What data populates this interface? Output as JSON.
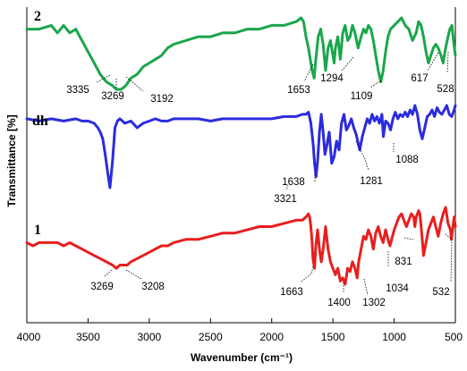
{
  "chart_data": {
    "type": "line",
    "title": "",
    "xlabel": "Wavenumber (cm⁻¹)",
    "ylabel": "Transmittance [%]",
    "xlim": [
      4000,
      500
    ],
    "xticks": [
      "4000",
      "3500",
      "3000",
      "2500",
      "2000",
      "1500",
      "1000",
      "500"
    ],
    "xtick_values": [
      4000,
      3500,
      3000,
      2500,
      2000,
      1500,
      1000,
      500
    ],
    "grid": false,
    "legend": "none",
    "series": [
      {
        "name": "2",
        "color": "#1aa64b",
        "x": [
          4000,
          3900,
          3800,
          3750,
          3700,
          3650,
          3600,
          3550,
          3500,
          3450,
          3400,
          3350,
          3300,
          3269,
          3230,
          3192,
          3150,
          3100,
          3050,
          3000,
          2950,
          2900,
          2850,
          2800,
          2700,
          2600,
          2500,
          2400,
          2300,
          2200,
          2100,
          2000,
          1900,
          1800,
          1760,
          1740,
          1720,
          1700,
          1680,
          1670,
          1653,
          1640,
          1620,
          1600,
          1580,
          1560,
          1540,
          1520,
          1500,
          1490,
          1480,
          1460,
          1440,
          1420,
          1400,
          1380,
          1360,
          1340,
          1320,
          1294,
          1270,
          1250,
          1230,
          1210,
          1190,
          1170,
          1150,
          1130,
          1109,
          1090,
          1070,
          1050,
          1030,
          1000,
          970,
          940,
          910,
          880,
          850,
          820,
          800,
          780,
          760,
          740,
          720,
          700,
          680,
          660,
          640,
          617,
          600,
          580,
          560,
          545,
          528,
          515,
          500
        ],
        "values": [
          93,
          93,
          94,
          92,
          94,
          92,
          93,
          90,
          87,
          84,
          81,
          79,
          78,
          77,
          77,
          78,
          80,
          81,
          83,
          84,
          85,
          86,
          88,
          89,
          90,
          91,
          91,
          92,
          92,
          93,
          93,
          94,
          94,
          95,
          96,
          95,
          91,
          88,
          84,
          82,
          80,
          85,
          91,
          93,
          89,
          82,
          88,
          90,
          86,
          84,
          88,
          91,
          85,
          92,
          94,
          90,
          91,
          94,
          92,
          88,
          91,
          93,
          92,
          94,
          93,
          90,
          86,
          82,
          79,
          82,
          87,
          91,
          93,
          94,
          95,
          96,
          94,
          93,
          90,
          92,
          95,
          94,
          91,
          87,
          84,
          86,
          88,
          89,
          88,
          86,
          84,
          88,
          91,
          93,
          94,
          90,
          86
        ]
      },
      {
        "name": "dh",
        "color": "#2b2bdd",
        "x": [
          4000,
          3900,
          3800,
          3700,
          3600,
          3550,
          3500,
          3450,
          3420,
          3400,
          3380,
          3360,
          3340,
          3321,
          3300,
          3280,
          3260,
          3240,
          3200,
          3150,
          3100,
          3050,
          3000,
          2950,
          2900,
          2850,
          2800,
          2700,
          2600,
          2500,
          2400,
          2300,
          2200,
          2100,
          2000,
          1900,
          1800,
          1750,
          1720,
          1700,
          1680,
          1660,
          1650,
          1638,
          1625,
          1610,
          1595,
          1580,
          1565,
          1550,
          1530,
          1510,
          1490,
          1470,
          1450,
          1430,
          1410,
          1390,
          1370,
          1350,
          1330,
          1310,
          1281,
          1260,
          1240,
          1220,
          1200,
          1180,
          1160,
          1140,
          1120,
          1100,
          1088,
          1070,
          1050,
          1030,
          1010,
          990,
          970,
          950,
          930,
          910,
          890,
          870,
          850,
          830,
          810,
          790,
          770,
          750,
          730,
          710,
          690,
          670,
          650,
          630,
          610,
          590,
          570,
          550,
          530,
          510,
          500
        ],
        "values": [
          64,
          63,
          64,
          63,
          64,
          63,
          63,
          62,
          60,
          58,
          55,
          48,
          40,
          33,
          45,
          60,
          63,
          64,
          62,
          63,
          60,
          62,
          63,
          64,
          63,
          63,
          64,
          64,
          64,
          63,
          64,
          64,
          64,
          64,
          64,
          65,
          65,
          66,
          66,
          67,
          62,
          52,
          44,
          38,
          45,
          58,
          66,
          58,
          48,
          52,
          58,
          44,
          47,
          54,
          50,
          62,
          66,
          59,
          61,
          64,
          60,
          57,
          50,
          56,
          60,
          64,
          62,
          66,
          63,
          65,
          62,
          66,
          56,
          63,
          62,
          59,
          64,
          67,
          64,
          66,
          65,
          67,
          65,
          68,
          66,
          70,
          66,
          59,
          55,
          60,
          65,
          66,
          68,
          65,
          69,
          67,
          66,
          68,
          70,
          66,
          65,
          68,
          70
        ]
      },
      {
        "name": "1",
        "color": "#e81e1e",
        "x": [
          4000,
          3950,
          3900,
          3850,
          3800,
          3750,
          3700,
          3650,
          3600,
          3550,
          3500,
          3450,
          3400,
          3350,
          3300,
          3269,
          3240,
          3208,
          3180,
          3150,
          3100,
          3050,
          3000,
          2950,
          2900,
          2850,
          2800,
          2700,
          2600,
          2500,
          2400,
          2300,
          2200,
          2100,
          2000,
          1900,
          1800,
          1750,
          1720,
          1700,
          1690,
          1680,
          1670,
          1663,
          1650,
          1640,
          1625,
          1610,
          1595,
          1580,
          1560,
          1540,
          1520,
          1500,
          1480,
          1460,
          1440,
          1420,
          1400,
          1380,
          1360,
          1340,
          1320,
          1302,
          1290,
          1270,
          1250,
          1230,
          1210,
          1190,
          1170,
          1150,
          1130,
          1110,
          1090,
          1070,
          1050,
          1034,
          1020,
          1000,
          980,
          960,
          940,
          920,
          900,
          880,
          860,
          840,
          831,
          820,
          800,
          790,
          780,
          770,
          760,
          740,
          720,
          700,
          680,
          660,
          640,
          620,
          600,
          580,
          560,
          540,
          532,
          520,
          510,
          500
        ],
        "values": [
          32,
          31,
          32,
          32,
          32,
          32,
          31,
          32,
          31,
          30,
          29,
          28,
          27,
          26,
          25,
          24,
          25,
          25,
          25,
          26,
          27,
          28,
          29,
          30,
          31,
          31,
          32,
          33,
          33,
          34,
          35,
          35,
          36,
          37,
          37,
          38,
          39,
          39,
          40,
          41,
          40,
          37,
          32,
          27,
          24,
          31,
          36,
          30,
          26,
          30,
          37,
          30,
          26,
          24,
          22,
          24,
          20,
          21,
          19,
          24,
          23,
          26,
          24,
          21,
          26,
          30,
          34,
          33,
          36,
          34,
          30,
          35,
          37,
          34,
          32,
          36,
          33,
          31,
          33,
          36,
          38,
          40,
          41,
          39,
          37,
          39,
          41,
          40,
          37,
          40,
          42,
          41,
          37,
          33,
          28,
          32,
          36,
          38,
          40,
          37,
          34,
          38,
          41,
          43,
          38,
          36,
          33,
          37,
          40,
          37
        ]
      }
    ],
    "series_labels": [
      "2",
      "dh",
      "1"
    ],
    "annotations": {
      "s2": [
        "3335",
        "3269",
        "3192",
        "1653",
        "1294",
        "1109",
        "617",
        "528"
      ],
      "dh": [
        "3321",
        "1638",
        "1281",
        "1088"
      ],
      "s1": [
        "3269",
        "3208",
        "1663",
        "1400",
        "1302",
        "1034",
        "831",
        "532"
      ]
    }
  }
}
